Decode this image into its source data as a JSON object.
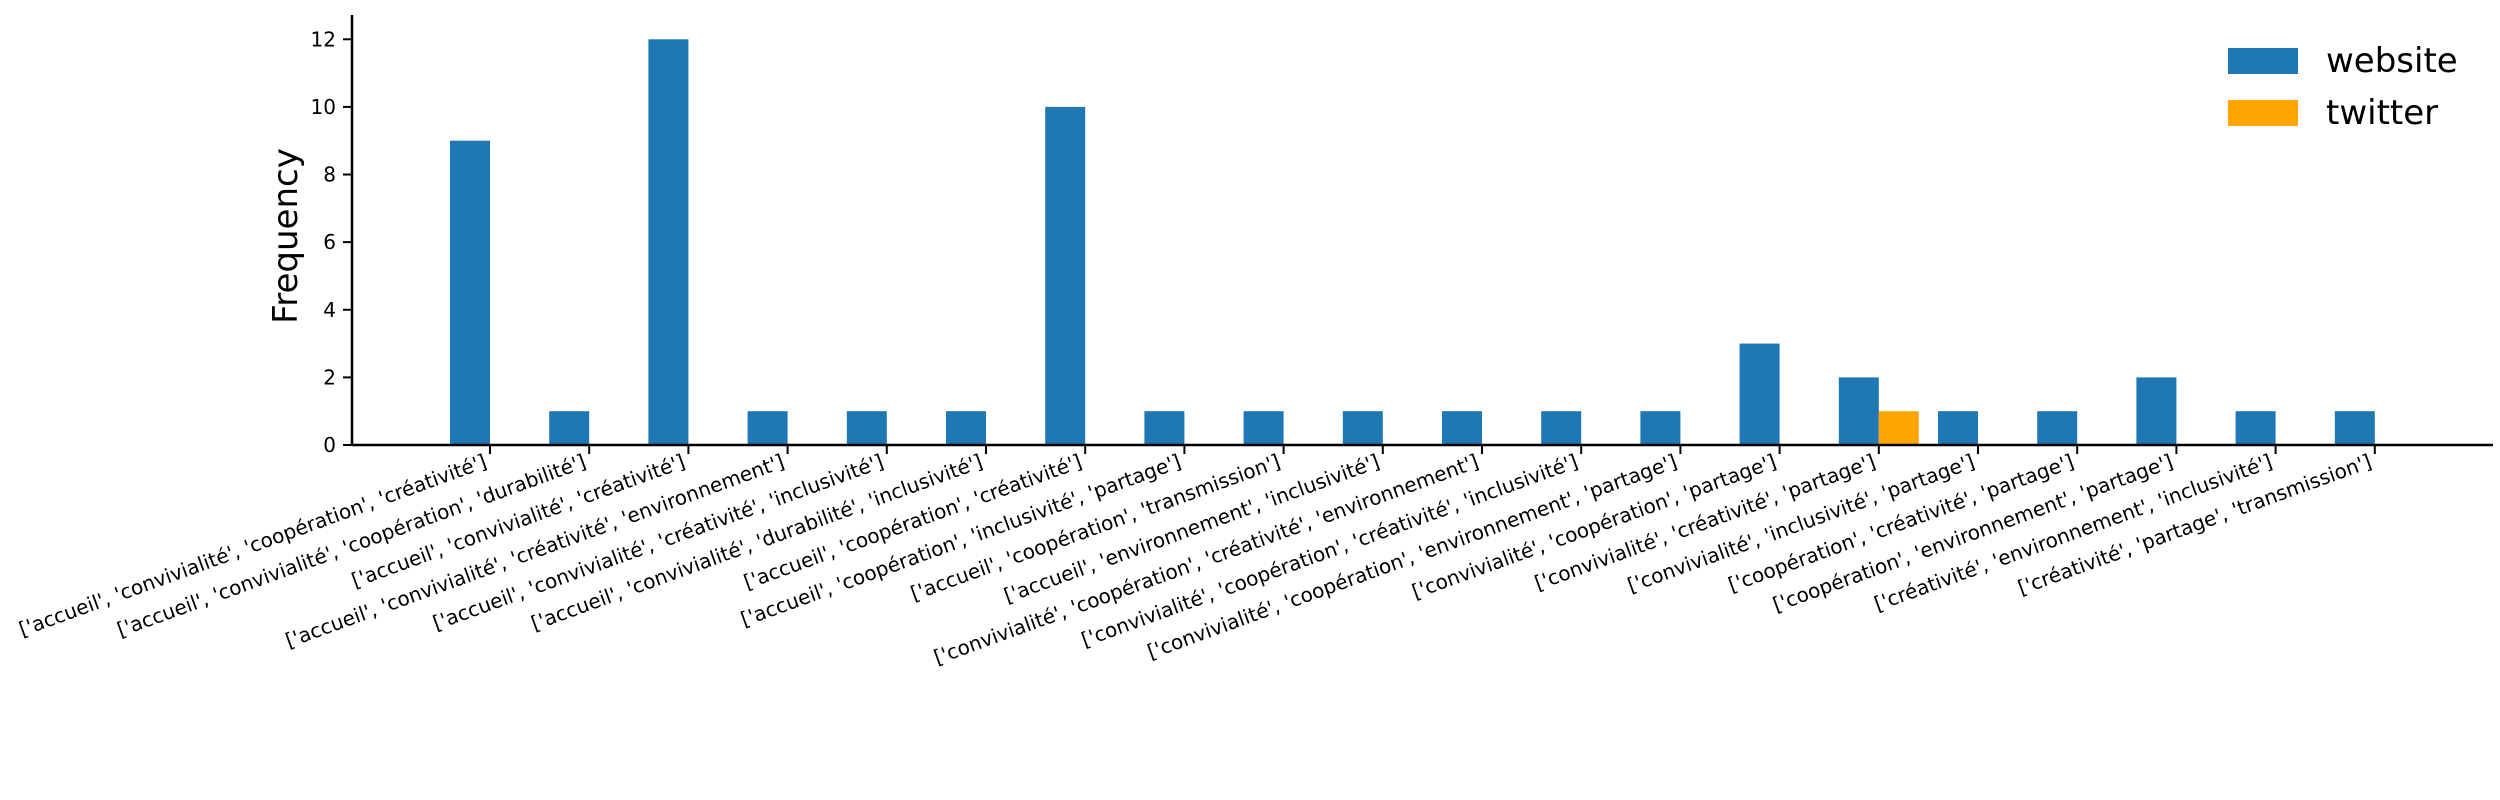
{
  "chart_data": {
    "type": "bar",
    "ylabel": "Frequency",
    "ylim": [
      0,
      12.6
    ],
    "yticks": [
      0,
      2,
      4,
      6,
      8,
      10,
      12
    ],
    "legend_position": "top-right",
    "categories": [
      "['accueil', 'convivialité', 'coopération', 'créativité']",
      "['accueil', 'convivialité', 'coopération', 'durabilité']",
      "['accueil', 'convivialité', 'créativité']",
      "['accueil', 'convivialité', 'créativité', 'environnement']",
      "['accueil', 'convivialité', 'créativité', 'inclusivité']",
      "['accueil', 'convivialité', 'durabilité', 'inclusivité']",
      "['accueil', 'coopération', 'créativité']",
      "['accueil', 'coopération', 'inclusivité', 'partage']",
      "['accueil', 'coopération', 'transmission']",
      "['accueil', 'environnement', 'inclusivité']",
      "['convivialité', 'coopération', 'créativité', 'environnement']",
      "['convivialité', 'coopération', 'créativité', 'inclusivité']",
      "['convivialité', 'coopération', 'environnement', 'partage']",
      "['convivialité', 'coopération', 'partage']",
      "['convivialité', 'créativité', 'partage']",
      "['convivialité', 'inclusivité', 'partage']",
      "['coopération', 'créativité', 'partage']",
      "['coopération', 'environnement', 'partage']",
      "['créativité', 'environnement', 'inclusivité']",
      "['créativité', 'partage', 'transmission']"
    ],
    "series": [
      {
        "name": "website",
        "color": "#1f77b4",
        "values": [
          9,
          1,
          12,
          1,
          1,
          1,
          10,
          1,
          1,
          1,
          1,
          1,
          1,
          3,
          2,
          1,
          1,
          2,
          1,
          1
        ]
      },
      {
        "name": "twitter",
        "color": "#ffa500",
        "values": [
          0,
          0,
          0,
          0,
          0,
          0,
          0,
          0,
          0,
          0,
          0,
          0,
          0,
          0,
          1,
          0,
          0,
          0,
          0,
          0
        ]
      }
    ]
  }
}
